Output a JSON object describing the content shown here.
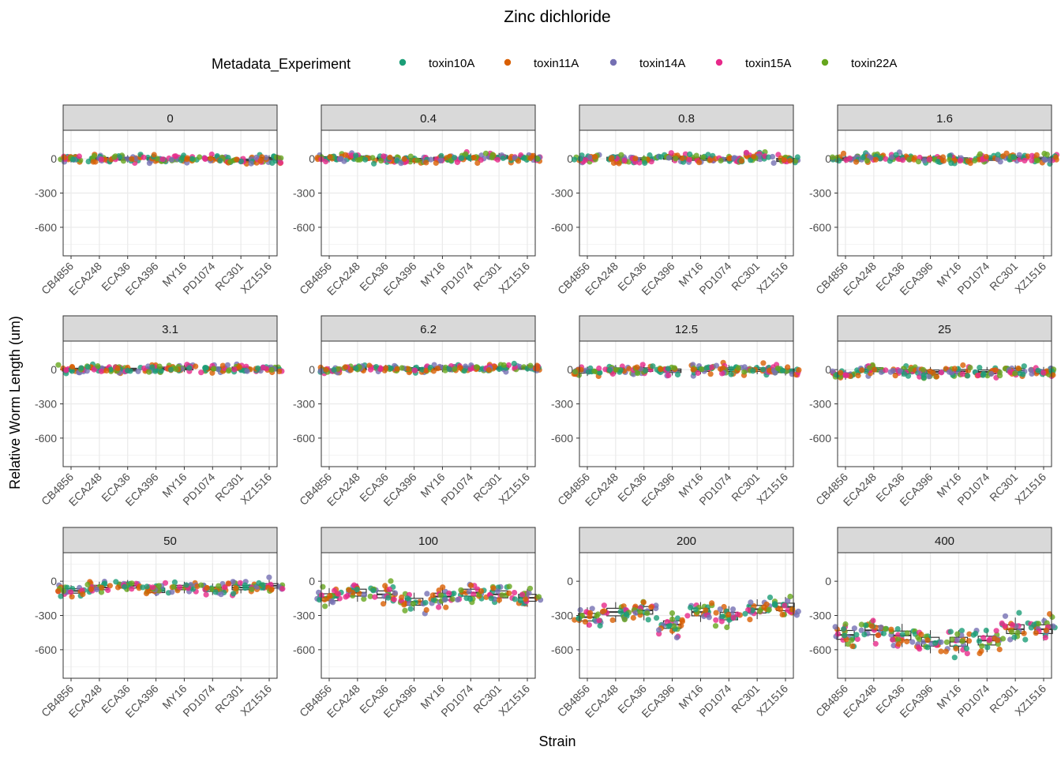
{
  "chart_data": {
    "type": "scatter",
    "title": "Zinc dichloride",
    "xlabel": "Strain",
    "ylabel": "Relative Worm Length (um)",
    "categories": [
      "CB4856",
      "ECA248",
      "ECA36",
      "ECA396",
      "MY16",
      "PD1074",
      "RC301",
      "XZ1516"
    ],
    "ylim": [
      -850,
      250
    ],
    "yticks": [
      0,
      -300,
      -600
    ],
    "grid": true,
    "legend": {
      "title": "Metadata_Experiment",
      "placement": "top",
      "entries": [
        {
          "name": "toxin10A",
          "color": "#1B9E77"
        },
        {
          "name": "toxin11A",
          "color": "#D95F02"
        },
        {
          "name": "toxin14A",
          "color": "#7570B3"
        },
        {
          "name": "toxin15A",
          "color": "#E7298A"
        },
        {
          "name": "toxin22A",
          "color": "#66A61E"
        }
      ]
    },
    "panel_columns": 4,
    "panels": [
      {
        "label": "0",
        "means": [
          0,
          0,
          0,
          0,
          0,
          0,
          -15,
          0
        ],
        "spread": 22
      },
      {
        "label": "0.4",
        "means": [
          5,
          10,
          0,
          -10,
          0,
          10,
          15,
          10
        ],
        "spread": 25
      },
      {
        "label": "0.8",
        "means": [
          0,
          0,
          -5,
          10,
          0,
          -5,
          15,
          -10
        ],
        "spread": 25
      },
      {
        "label": "1.6",
        "means": [
          0,
          10,
          10,
          0,
          -5,
          0,
          10,
          0
        ],
        "spread": 25
      },
      {
        "label": "3.1",
        "means": [
          0,
          10,
          0,
          10,
          10,
          10,
          10,
          10
        ],
        "spread": 22
      },
      {
        "label": "6.2",
        "means": [
          -5,
          10,
          10,
          5,
          10,
          15,
          15,
          15
        ],
        "spread": 22
      },
      {
        "label": "12.5",
        "means": [
          -15,
          0,
          0,
          -10,
          0,
          0,
          0,
          -10
        ],
        "spread": 28
      },
      {
        "label": "25",
        "means": [
          -45,
          0,
          -15,
          -20,
          -15,
          -20,
          -5,
          -20
        ],
        "spread": 30
      },
      {
        "label": "50",
        "means": [
          -85,
          -55,
          -40,
          -80,
          -55,
          -70,
          -55,
          -40
        ],
        "spread": 35
      },
      {
        "label": "100",
        "means": [
          -140,
          -100,
          -115,
          -180,
          -135,
          -100,
          -115,
          -145
        ],
        "spread": 55
      },
      {
        "label": "200",
        "means": [
          -315,
          -270,
          -255,
          -380,
          -270,
          -305,
          -245,
          -225
        ],
        "spread": 60
      },
      {
        "label": "400",
        "means": [
          -470,
          -430,
          -475,
          -530,
          -530,
          -520,
          -420,
          -420
        ],
        "spread": 70
      }
    ]
  }
}
